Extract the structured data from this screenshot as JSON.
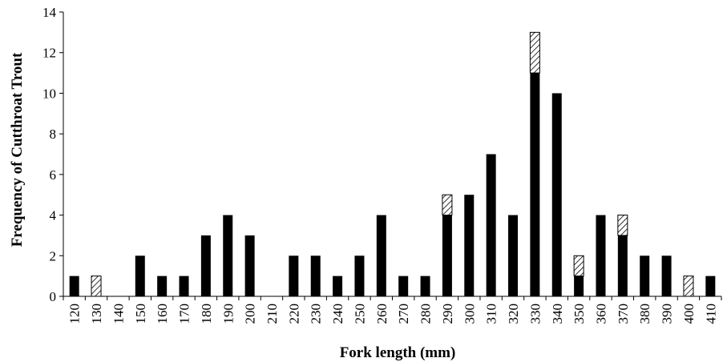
{
  "chart_data": {
    "type": "bar",
    "stacked": true,
    "title": "",
    "xlabel": "Fork length (mm)",
    "ylabel": "Frequency of Cutthroat Trout",
    "categories": [
      "120",
      "130",
      "140",
      "150",
      "160",
      "170",
      "180",
      "190",
      "200",
      "210",
      "220",
      "230",
      "240",
      "250",
      "260",
      "270",
      "280",
      "290",
      "300",
      "310",
      "320",
      "330",
      "340",
      "350",
      "360",
      "370",
      "380",
      "390",
      "400",
      "410"
    ],
    "series": [
      {
        "fill": "solid",
        "color": "#000000",
        "values": [
          1,
          0,
          0,
          2,
          1,
          1,
          3,
          4,
          3,
          0,
          2,
          2,
          1,
          2,
          4,
          1,
          1,
          4,
          5,
          7,
          4,
          11,
          10,
          1,
          4,
          3,
          2,
          2,
          0,
          1
        ]
      },
      {
        "fill": "hatched",
        "color": "#000000",
        "values": [
          0,
          1,
          0,
          0,
          0,
          0,
          0,
          0,
          0,
          0,
          0,
          0,
          0,
          0,
          0,
          0,
          0,
          1,
          0,
          0,
          0,
          2,
          0,
          1,
          0,
          1,
          0,
          0,
          1,
          0
        ]
      }
    ],
    "ylim": [
      0,
      14
    ],
    "yticks": [
      "0",
      "2",
      "4",
      "6",
      "8",
      "10",
      "12",
      "14"
    ],
    "grid": false,
    "legend": "none"
  }
}
